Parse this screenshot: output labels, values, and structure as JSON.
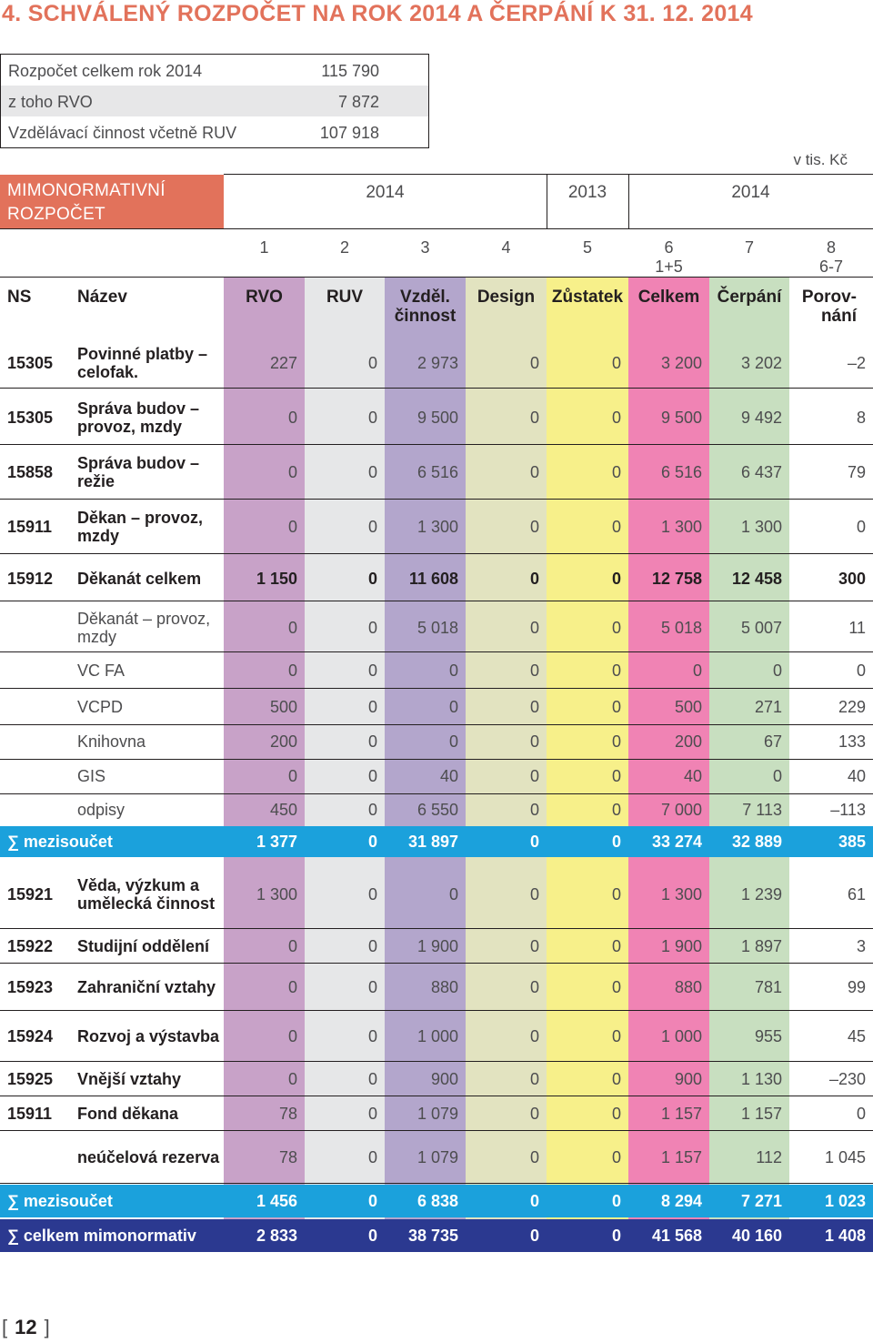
{
  "title": "4. SCHVÁLENÝ ROZPOČET NA ROK 2014 A ČERPÁNÍ K 31. 12. 2014",
  "summary": [
    {
      "label": "Rozpočet celkem rok 2014",
      "value": "115 790"
    },
    {
      "label": "z toho RVO",
      "value": "7 872"
    },
    {
      "label": "Vzdělávací činnost včetně RUV",
      "value": "107 918"
    }
  ],
  "unit": "v tis. Kč",
  "section_title": "MIMONORMATIVNÍ ROZPOČET",
  "years": [
    "2014",
    "2013",
    "2014"
  ],
  "column_numbers": [
    "1",
    "2",
    "3",
    "4",
    "5",
    "6\n1+5",
    "7",
    "8\n6-7"
  ],
  "headers": {
    "ns": "NS",
    "name": "Název",
    "cols": [
      "RVO",
      "RUV",
      "Vzděl.\nčinnost",
      "Design",
      "Zůstatek",
      "Celkem",
      "Čerpání",
      "Porov-\nnání"
    ]
  },
  "colors": {
    "title": "#e2725b",
    "rvo": "#c8a2c8",
    "ruv": "#e6e7e8",
    "vzdel": "#b3a6cc",
    "design": "#e2e3c0",
    "zustatek": "#f7f08a",
    "celkem": "#f083b4",
    "cerpani": "#c8dfc0",
    "subtotal": "#1ba1dc",
    "total": "#2b3990"
  },
  "rows": [
    {
      "ns": "15305",
      "name": "Povinné platby – celofak.",
      "name_bold": true,
      "vals": [
        "227",
        "0",
        "2 973",
        "0",
        "0",
        "3 200",
        "3 202",
        "–2"
      ]
    },
    {
      "ns": "15305",
      "name": "Správa budov – provoz, mzdy",
      "name_bold": true,
      "vals": [
        "0",
        "0",
        "9 500",
        "0",
        "0",
        "9 500",
        "9 492",
        "8"
      ]
    },
    {
      "ns": "15858",
      "name": "Správa budov – režie",
      "name_bold": true,
      "vals": [
        "0",
        "0",
        "6 516",
        "0",
        "0",
        "6 516",
        "6 437",
        "79"
      ]
    },
    {
      "ns": "15911",
      "name": "Děkan – provoz, mzdy",
      "name_bold": true,
      "vals": [
        "0",
        "0",
        "1 300",
        "0",
        "0",
        "1 300",
        "1 300",
        "0"
      ]
    },
    {
      "ns": "15912",
      "name": "Děkanát celkem",
      "name_bold": true,
      "bold": true,
      "vals": [
        "1 150",
        "0",
        "11 608",
        "0",
        "0",
        "12 758",
        "12 458",
        "300"
      ]
    },
    {
      "ns": "",
      "name": "Děkanát – provoz, mzdy",
      "name_bold": false,
      "vals": [
        "0",
        "0",
        "5 018",
        "0",
        "0",
        "5 018",
        "5 007",
        "11"
      ]
    },
    {
      "ns": "",
      "name": "VC FA",
      "name_bold": false,
      "vals": [
        "0",
        "0",
        "0",
        "0",
        "0",
        "0",
        "0",
        "0"
      ]
    },
    {
      "ns": "",
      "name": "VCPD",
      "name_bold": false,
      "vals": [
        "500",
        "0",
        "0",
        "0",
        "0",
        "500",
        "271",
        "229"
      ]
    },
    {
      "ns": "",
      "name": "Knihovna",
      "name_bold": false,
      "vals": [
        "200",
        "0",
        "0",
        "0",
        "0",
        "200",
        "67",
        "133"
      ]
    },
    {
      "ns": "",
      "name": "GIS",
      "name_bold": false,
      "vals": [
        "0",
        "0",
        "40",
        "0",
        "0",
        "40",
        "0",
        "40"
      ]
    },
    {
      "ns": "",
      "name": "odpisy",
      "name_bold": false,
      "vals": [
        "450",
        "0",
        "6 550",
        "0",
        "0",
        "7 000",
        "7 113",
        "–113"
      ]
    },
    {
      "type": "sub",
      "name": "∑ mezisoučet",
      "vals": [
        "1 377",
        "0",
        "31 897",
        "0",
        "0",
        "33 274",
        "32 889",
        "385"
      ]
    },
    {
      "ns": "15921",
      "name": "Věda, výzkum a umělecká činnost",
      "name_bold": true,
      "vals": [
        "1 300",
        "0",
        "0",
        "0",
        "0",
        "1 300",
        "1 239",
        "61"
      ]
    },
    {
      "ns": "15922",
      "name": "Studijní oddělení",
      "name_bold": true,
      "vals": [
        "0",
        "0",
        "1 900",
        "0",
        "0",
        "1 900",
        "1 897",
        "3"
      ]
    },
    {
      "ns": "15923",
      "name": "Zahraniční vztahy",
      "name_bold": true,
      "vals": [
        "0",
        "0",
        "880",
        "0",
        "0",
        "880",
        "781",
        "99"
      ]
    },
    {
      "ns": "15924",
      "name": "Rozvoj a výstavba",
      "name_bold": true,
      "vals": [
        "0",
        "0",
        "1 000",
        "0",
        "0",
        "1 000",
        "955",
        "45"
      ]
    },
    {
      "ns": "15925",
      "name": "Vnější vztahy",
      "name_bold": true,
      "vals": [
        "0",
        "0",
        "900",
        "0",
        "0",
        "900",
        "1 130",
        "–230"
      ]
    },
    {
      "ns": "15911",
      "name": "Fond děkana",
      "name_bold": true,
      "vals": [
        "78",
        "0",
        "1 079",
        "0",
        "0",
        "1 157",
        "1 157",
        "0"
      ]
    },
    {
      "ns": "",
      "name": "neúčelová rezerva",
      "name_bold": true,
      "vals": [
        "78",
        "0",
        "1 079",
        "0",
        "0",
        "1 157",
        "112",
        "1 045"
      ]
    },
    {
      "type": "sub",
      "name": "∑ mezisoučet",
      "vals": [
        "1 456",
        "0",
        "6 838",
        "0",
        "0",
        "8 294",
        "7 271",
        "1 023"
      ]
    },
    {
      "type": "tot",
      "name": "∑ celkem mimonormativ",
      "vals": [
        "2 833",
        "0",
        "38 735",
        "0",
        "0",
        "41 568",
        "40 160",
        "1 408"
      ]
    }
  ],
  "page_number": "12"
}
